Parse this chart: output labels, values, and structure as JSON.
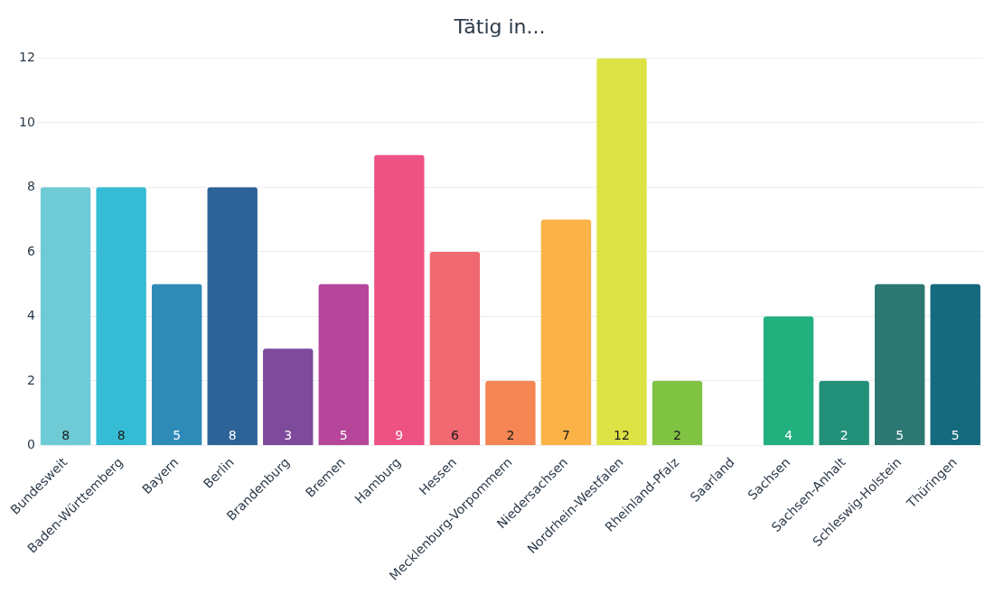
{
  "chart_data": {
    "type": "bar",
    "title": "Tätig in...",
    "categories": [
      "Bundesweit",
      "Baden-Württemberg",
      "Bayern",
      "Berlin",
      "Brandenburg",
      "Bremen",
      "Hamburg",
      "Hessen",
      "Mecklenburg-Vorpommern",
      "Niedersachsen",
      "Nordrhein-Westfalen",
      "Rheinland-Pfalz",
      "Saarland",
      "Sachsen",
      "Sachsen-Anhalt",
      "Schleswig-Holstein",
      "Thüringen"
    ],
    "values": [
      8,
      8,
      5,
      8,
      3,
      5,
      9,
      6,
      2,
      7,
      12,
      2,
      0,
      4,
      2,
      5,
      5
    ],
    "value_labels": [
      "8",
      "8",
      "5",
      "8",
      "3",
      "5",
      "9",
      "6",
      "2",
      "7",
      "12",
      "2",
      null,
      "4",
      "2",
      "5",
      "5"
    ],
    "colors": [
      "#6ecbd5",
      "#35bcd4",
      "#2e8bb8",
      "#2c6399",
      "#7d4a9c",
      "#b5469a",
      "#ee5183",
      "#f06870",
      "#f58654",
      "#fbb247",
      "#dde344",
      "#80c242",
      "#4cbf6e",
      "#22b07f",
      "#23907a",
      "#2e7874",
      "#156a7d"
    ],
    "ylim": [
      0,
      12
    ],
    "yticks": [
      0,
      2,
      4,
      6,
      8,
      10,
      12
    ],
    "grid": "y",
    "legend": false
  }
}
